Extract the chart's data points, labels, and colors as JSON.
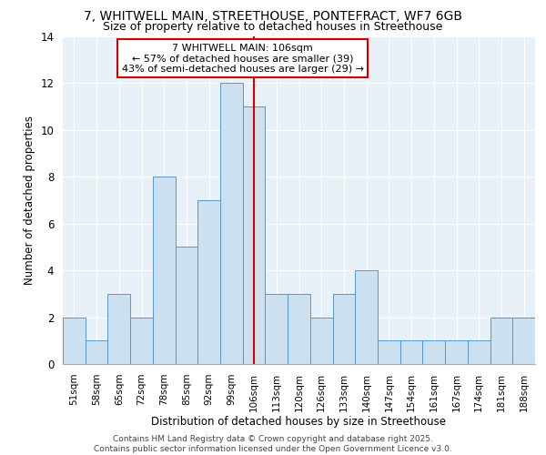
{
  "title_line1": "7, WHITWELL MAIN, STREETHOUSE, PONTEFRACT, WF7 6GB",
  "title_line2": "Size of property relative to detached houses in Streethouse",
  "xlabel": "Distribution of detached houses by size in Streethouse",
  "ylabel": "Number of detached properties",
  "categories": [
    "51sqm",
    "58sqm",
    "65sqm",
    "72sqm",
    "78sqm",
    "85sqm",
    "92sqm",
    "99sqm",
    "106sqm",
    "113sqm",
    "120sqm",
    "126sqm",
    "133sqm",
    "140sqm",
    "147sqm",
    "154sqm",
    "161sqm",
    "167sqm",
    "174sqm",
    "181sqm",
    "188sqm"
  ],
  "values": [
    2,
    1,
    3,
    2,
    8,
    5,
    7,
    12,
    11,
    3,
    3,
    2,
    3,
    4,
    1,
    1,
    1,
    1,
    1,
    2,
    2
  ],
  "highlight_index": 8,
  "bar_color": "#cce0f0",
  "bar_edge_color": "#5599cc",
  "highlight_line_color": "#cc0000",
  "annotation_text": "7 WHITWELL MAIN: 106sqm\n← 57% of detached houses are smaller (39)\n43% of semi-detached houses are larger (29) →",
  "annotation_box_color": "#ffffff",
  "annotation_box_edge_color": "#cc0000",
  "footer_line1": "Contains HM Land Registry data © Crown copyright and database right 2025.",
  "footer_line2": "Contains public sector information licensed under the Open Government Licence v3.0.",
  "ylim": [
    0,
    14
  ],
  "background_color": "#e8f0f8",
  "grid_color": "#ffffff",
  "title_fontsize": 10,
  "subtitle_fontsize": 9,
  "axis_label_fontsize": 8.5,
  "tick_fontsize": 7.5,
  "annotation_fontsize": 8,
  "footer_fontsize": 6.5
}
